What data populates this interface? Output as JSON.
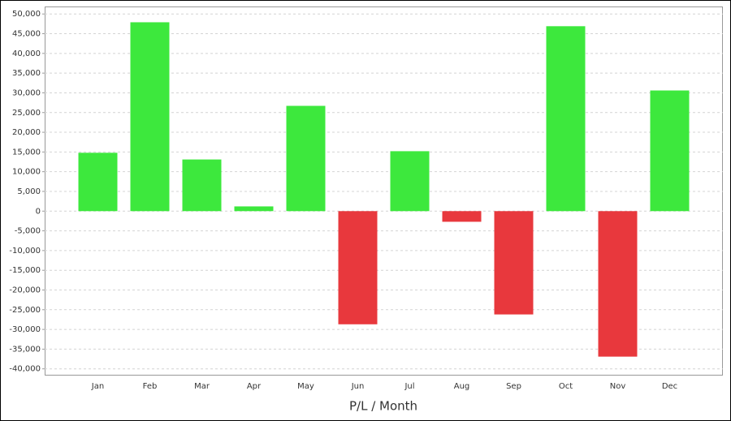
{
  "chart_data": {
    "type": "bar",
    "title": "P/L / Month",
    "categories": [
      "Jan",
      "Feb",
      "Mar",
      "Apr",
      "May",
      "Jun",
      "Jul",
      "Aug",
      "Sep",
      "Oct",
      "Nov",
      "Dec"
    ],
    "values": [
      14800,
      47900,
      13100,
      1200,
      26700,
      -28700,
      15200,
      -2700,
      -26200,
      46900,
      -36900,
      30600
    ],
    "positive_color": "#3de83d",
    "negative_color": "#e8383d",
    "ylim": [
      -41500,
      51900
    ],
    "yticks": [
      {
        "value": 50000,
        "label": "50,000"
      },
      {
        "value": 45000,
        "label": "45,000"
      },
      {
        "value": 40000,
        "label": "40,000"
      },
      {
        "value": 35000,
        "label": "35,000"
      },
      {
        "value": 30000,
        "label": "30,000"
      },
      {
        "value": 25000,
        "label": "25,000"
      },
      {
        "value": 20000,
        "label": "20,000"
      },
      {
        "value": 15000,
        "label": "15,000"
      },
      {
        "value": 10000,
        "label": "10,000"
      },
      {
        "value": 5000,
        "label": "5,000"
      },
      0,
      {
        "value": -5000,
        "label": "-5,000"
      },
      {
        "value": -10000,
        "label": "-10,000"
      },
      {
        "value": -15000,
        "label": "-15,000"
      },
      {
        "value": -20000,
        "label": "-20,000"
      },
      {
        "value": -25000,
        "label": "-25,000"
      },
      {
        "value": -30000,
        "label": "-30,000"
      },
      {
        "value": -35000,
        "label": "-35,000"
      },
      {
        "value": -40000,
        "label": "-40,000"
      }
    ],
    "grid": true
  }
}
